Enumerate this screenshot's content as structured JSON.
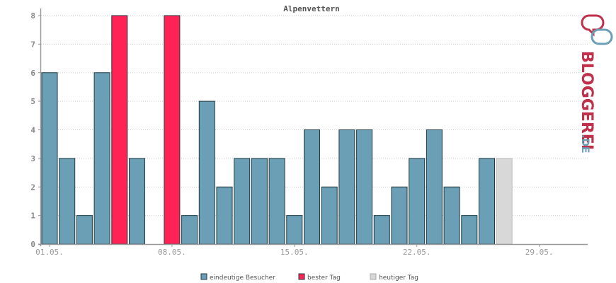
{
  "chart_data": {
    "type": "bar",
    "title": "Alpenvettern",
    "ylim": [
      0,
      8
    ],
    "yticks": [
      0,
      1,
      2,
      3,
      4,
      5,
      6,
      7,
      8
    ],
    "x_tick_labels": [
      {
        "day": 1,
        "label": "01.05."
      },
      {
        "day": 8,
        "label": "08.05."
      },
      {
        "day": 15,
        "label": "15.05."
      },
      {
        "day": 22,
        "label": "22.05."
      },
      {
        "day": 29,
        "label": "29.05."
      }
    ],
    "grid": true,
    "legend_position": "bottom",
    "series": [
      {
        "name": "eindeutige Besucher",
        "color": "#6a9fb5"
      },
      {
        "name": "bester Tag",
        "color": "#ff2255"
      },
      {
        "name": "heutiger Tag",
        "color": "#d8d8d8"
      }
    ],
    "bars": [
      {
        "day": 1,
        "value": 6,
        "kind": "eindeutige Besucher"
      },
      {
        "day": 2,
        "value": 3,
        "kind": "eindeutige Besucher"
      },
      {
        "day": 3,
        "value": 1,
        "kind": "eindeutige Besucher"
      },
      {
        "day": 4,
        "value": 6,
        "kind": "eindeutige Besucher"
      },
      {
        "day": 5,
        "value": 8,
        "kind": "bester Tag"
      },
      {
        "day": 6,
        "value": 3,
        "kind": "eindeutige Besucher"
      },
      {
        "day": 7,
        "value": 0,
        "kind": "eindeutige Besucher"
      },
      {
        "day": 8,
        "value": 8,
        "kind": "bester Tag"
      },
      {
        "day": 9,
        "value": 1,
        "kind": "eindeutige Besucher"
      },
      {
        "day": 10,
        "value": 5,
        "kind": "eindeutige Besucher"
      },
      {
        "day": 11,
        "value": 2,
        "kind": "eindeutige Besucher"
      },
      {
        "day": 12,
        "value": 3,
        "kind": "eindeutige Besucher"
      },
      {
        "day": 13,
        "value": 3,
        "kind": "eindeutige Besucher"
      },
      {
        "day": 14,
        "value": 3,
        "kind": "eindeutige Besucher"
      },
      {
        "day": 15,
        "value": 1,
        "kind": "eindeutige Besucher"
      },
      {
        "day": 16,
        "value": 4,
        "kind": "eindeutige Besucher"
      },
      {
        "day": 17,
        "value": 2,
        "kind": "eindeutige Besucher"
      },
      {
        "day": 18,
        "value": 4,
        "kind": "eindeutige Besucher"
      },
      {
        "day": 19,
        "value": 4,
        "kind": "eindeutige Besucher"
      },
      {
        "day": 20,
        "value": 1,
        "kind": "eindeutige Besucher"
      },
      {
        "day": 21,
        "value": 2,
        "kind": "eindeutige Besucher"
      },
      {
        "day": 22,
        "value": 3,
        "kind": "eindeutige Besucher"
      },
      {
        "day": 23,
        "value": 4,
        "kind": "eindeutige Besucher"
      },
      {
        "day": 24,
        "value": 2,
        "kind": "eindeutige Besucher"
      },
      {
        "day": 25,
        "value": 1,
        "kind": "eindeutige Besucher"
      },
      {
        "day": 26,
        "value": 3,
        "kind": "eindeutige Besucher"
      },
      {
        "day": 27,
        "value": 3,
        "kind": "heutiger Tag"
      }
    ],
    "x_range": [
      1,
      31
    ]
  },
  "logo": {
    "text_main": "BLOGGEREI",
    "text_suffix": ".DE",
    "color_main": "#c0304a",
    "color_suffix": "#6a9fb5"
  }
}
